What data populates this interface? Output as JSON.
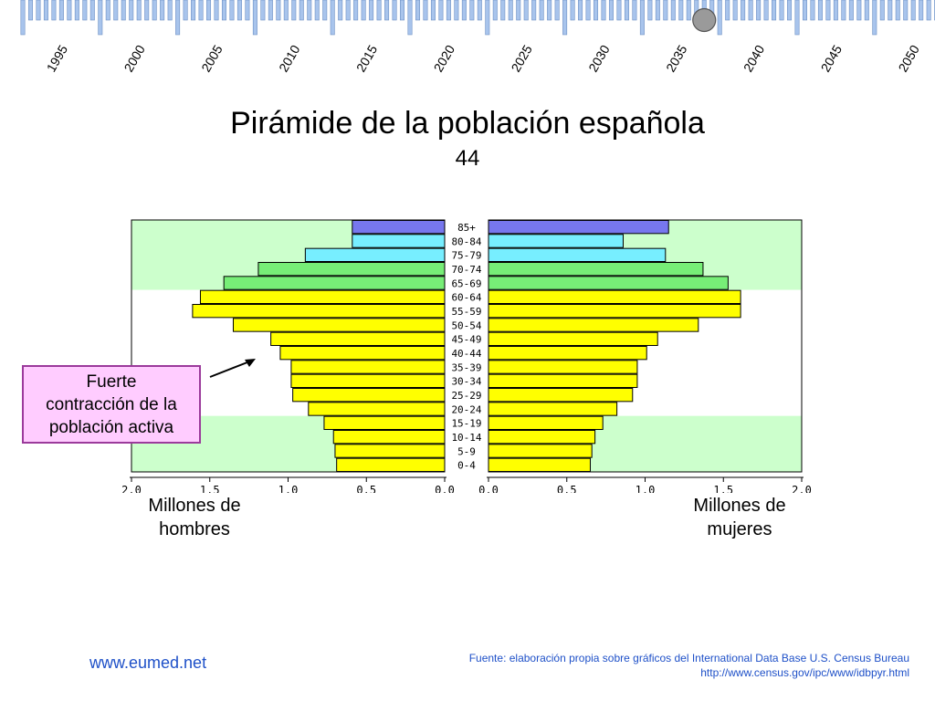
{
  "timeline": {
    "years": [
      "1995",
      "2000",
      "2005",
      "2010",
      "2015",
      "2020",
      "2025",
      "2030",
      "2035",
      "2040",
      "2045",
      "2050"
    ],
    "selected_year": "2035",
    "colors": {
      "tick": "#a8c4ec",
      "tick_border": "#6e90c4",
      "label": "#000000",
      "knob": "#9a9a9a"
    }
  },
  "header": {
    "title": "Pirámide de la población española",
    "subtitle": "44"
  },
  "callout": {
    "line1": "Fuerte",
    "line2": "contracción de la",
    "line3": "población activa"
  },
  "axes": {
    "men_title_line1": "Millones de",
    "men_title_line2": "hombres",
    "women_title_line1": "Millones de",
    "women_title_line2": "mujeres"
  },
  "footer": {
    "website": "www.eumed.net",
    "source_line1": "Fuente: elaboración propia sobre gráficos del International Data Base U.S. Census Bureau",
    "source_line2": "http://www.census.gov/ipc/www/idbpyr.html"
  },
  "chart_data": {
    "type": "bar",
    "orientation": "horizontal-pyramid",
    "categories": [
      "85+",
      "80-84",
      "75-79",
      "70-74",
      "65-69",
      "60-64",
      "55-59",
      "50-54",
      "45-49",
      "40-44",
      "35-39",
      "30-34",
      "25-29",
      "20-24",
      "15-19",
      "10-14",
      "5-9",
      "0-4"
    ],
    "series": [
      {
        "name": "hombres",
        "values": [
          0.59,
          0.59,
          0.89,
          1.19,
          1.41,
          1.56,
          1.61,
          1.35,
          1.11,
          1.05,
          0.98,
          0.98,
          0.97,
          0.87,
          0.77,
          0.71,
          0.7,
          0.69
        ]
      },
      {
        "name": "mujeres",
        "values": [
          1.15,
          0.86,
          1.13,
          1.37,
          1.53,
          1.61,
          1.61,
          1.34,
          1.08,
          1.01,
          0.95,
          0.95,
          0.92,
          0.82,
          0.73,
          0.68,
          0.66,
          0.65
        ]
      }
    ],
    "bar_colors": [
      "#7777ee",
      "#77eeff",
      "#77eeff",
      "#77ee77",
      "#77ee77",
      "#ffff00",
      "#ffff00",
      "#ffff00",
      "#ffff00",
      "#ffff00",
      "#ffff00",
      "#ffff00",
      "#ffff00",
      "#ffff00",
      "#ffff00",
      "#ffff00",
      "#ffff00",
      "#ffff00"
    ],
    "background_bands": [
      {
        "from": "85+",
        "to": "65-69",
        "color": "#ccffcc"
      },
      {
        "from": "60-64",
        "to": "20-24",
        "color": "#ffffff"
      },
      {
        "from": "15-19",
        "to": "0-4",
        "color": "#ccffcc"
      }
    ],
    "xlim": [
      0,
      2.0
    ],
    "ticks": [
      "2.0",
      "1.5",
      "1.0",
      "0.5",
      "0.0"
    ],
    "ticks_women": [
      "0.0",
      "0.5",
      "1.0",
      "1.5",
      "2.0"
    ],
    "grid": false
  }
}
